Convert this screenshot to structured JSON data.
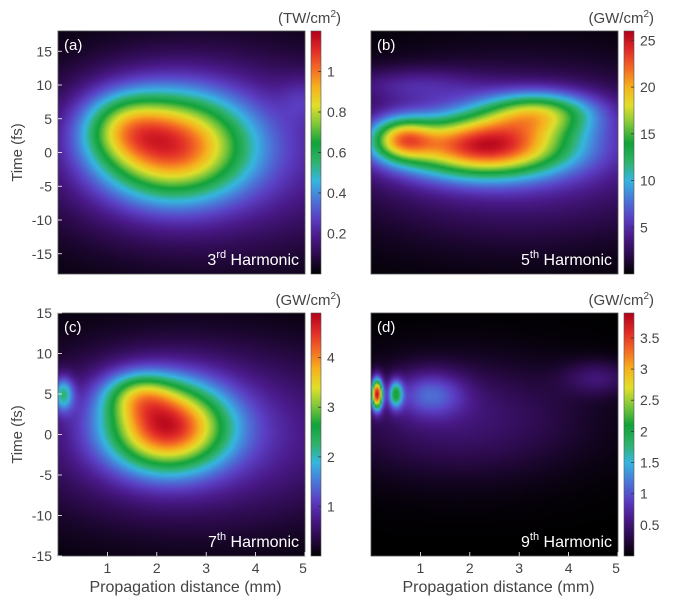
{
  "chart_data": [
    {
      "type": "heatmap",
      "panel_label": "(a)",
      "harmonic": {
        "order": "3",
        "suffix": "rd",
        "word": "Harmonic"
      },
      "unit": "(TW/cm²)",
      "xlim": [
        0,
        5
      ],
      "ylim": [
        -18,
        18
      ],
      "xticks": [],
      "yticks": [
        -15,
        -10,
        -5,
        0,
        5,
        10,
        15
      ],
      "ylabel": "Time (fs)",
      "xlabel": "",
      "cbar_range": [
        0,
        1.2
      ],
      "cbar_ticks": [
        0.2,
        0.4,
        0.6,
        0.8,
        1
      ],
      "peak_value": 1.15,
      "blobs": [
        {
          "x": 2.3,
          "t": 1,
          "sx": 1.05,
          "st": 5.5,
          "amp": 1.0
        },
        {
          "x": 1.3,
          "t": 4,
          "sx": 0.6,
          "st": 3.5,
          "amp": 0.35
        },
        {
          "x": 3.2,
          "t": 0,
          "sx": 2.6,
          "st": 10,
          "amp": 0.3
        },
        {
          "x": 5.0,
          "t": 8,
          "sx": 0.35,
          "st": 2.5,
          "amp": 0.12
        }
      ]
    },
    {
      "type": "heatmap",
      "panel_label": "(b)",
      "harmonic": {
        "order": "5",
        "suffix": "th",
        "word": "Harmonic"
      },
      "unit": "(GW/cm²)",
      "xlim": [
        0,
        5
      ],
      "ylim": [
        -18,
        18
      ],
      "xticks": [],
      "yticks": [],
      "ylabel": "",
      "xlabel": "",
      "cbar_range": [
        0,
        26
      ],
      "cbar_ticks": [
        5,
        10,
        15,
        20,
        25
      ],
      "peak_value": 25.5,
      "blobs": [
        {
          "x": 2.3,
          "t": 1,
          "sx": 1.2,
          "st": 3.2,
          "amp": 1.0
        },
        {
          "x": 0.6,
          "t": 2,
          "sx": 0.45,
          "st": 2.2,
          "amp": 0.6
        },
        {
          "x": 3.4,
          "t": 6,
          "sx": 0.8,
          "st": 2.2,
          "amp": 0.55
        },
        {
          "x": 3.0,
          "t": 0,
          "sx": 2.5,
          "st": 8.5,
          "amp": 0.25
        },
        {
          "x": 0.8,
          "t": 10,
          "sx": 1.0,
          "st": 1.8,
          "amp": 0.15
        }
      ]
    },
    {
      "type": "heatmap",
      "panel_label": "(c)",
      "harmonic": {
        "order": "7",
        "suffix": "th",
        "word": "Harmonic"
      },
      "unit": "(GW/cm²)",
      "xlim": [
        0,
        5
      ],
      "ylim": [
        -15,
        15
      ],
      "xticks": [
        1,
        2,
        3,
        4,
        5
      ],
      "yticks": [
        -15,
        -10,
        -5,
        0,
        5,
        10,
        15
      ],
      "ylabel": "Time (fs)",
      "xlabel": "Propagation distance (mm)",
      "cbar_range": [
        0,
        4.9
      ],
      "cbar_ticks": [
        1,
        2,
        3,
        4
      ],
      "peak_value": 4.8,
      "blobs": [
        {
          "x": 2.2,
          "t": 1,
          "sx": 0.85,
          "st": 3.8,
          "amp": 1.0
        },
        {
          "x": 1.6,
          "t": 5,
          "sx": 0.5,
          "st": 2.0,
          "amp": 0.35
        },
        {
          "x": 0.1,
          "t": 5,
          "sx": 0.15,
          "st": 1.5,
          "amp": 0.45
        },
        {
          "x": 2.8,
          "t": 0,
          "sx": 2.5,
          "st": 7.5,
          "amp": 0.28
        }
      ]
    },
    {
      "type": "heatmap",
      "panel_label": "(d)",
      "harmonic": {
        "order": "9",
        "suffix": "th",
        "word": "Harmonic"
      },
      "unit": "(GW/cm²)",
      "xlim": [
        0,
        5
      ],
      "ylim": [
        -15,
        15
      ],
      "xticks": [
        1,
        2,
        3,
        4,
        5
      ],
      "yticks": [],
      "ylabel": "",
      "xlabel": "Propagation distance (mm)",
      "cbar_range": [
        0,
        3.9
      ],
      "cbar_ticks": [
        0.5,
        1,
        1.5,
        2,
        2.5,
        3,
        3.5
      ],
      "peak_value": 3.8,
      "blobs": [
        {
          "x": 0.12,
          "t": 5,
          "sx": 0.08,
          "st": 1.3,
          "amp": 1.0
        },
        {
          "x": 0.5,
          "t": 5,
          "sx": 0.1,
          "st": 1.2,
          "amp": 0.45
        },
        {
          "x": 1.2,
          "t": 5,
          "sx": 0.5,
          "st": 2.0,
          "amp": 0.22
        },
        {
          "x": 1.8,
          "t": 2,
          "sx": 1.8,
          "st": 5.0,
          "amp": 0.14
        },
        {
          "x": 4.6,
          "t": 7,
          "sx": 0.5,
          "st": 1.5,
          "amp": 0.12
        }
      ]
    }
  ],
  "colormap": [
    "#000000",
    "#2b0a4a",
    "#4a1a8a",
    "#5b3fc4",
    "#4a78d8",
    "#36b6e0",
    "#2fb26a",
    "#11a23a",
    "#7cc63a",
    "#e0df2b",
    "#f6b21e",
    "#f46a24",
    "#e02a28",
    "#b0001a"
  ]
}
